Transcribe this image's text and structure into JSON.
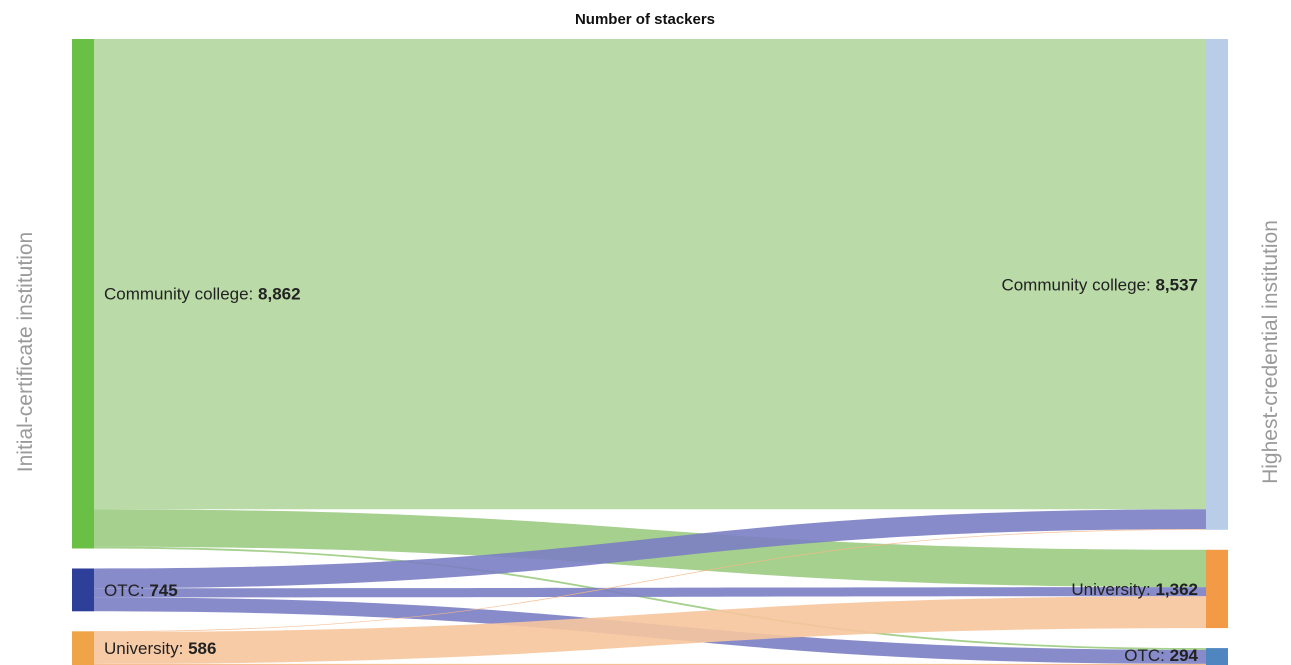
{
  "chart_data": {
    "type": "sankey",
    "title": "Number of stackers",
    "left_axis_label": "Initial-certificate institution",
    "right_axis_label": "Highest-credential institution",
    "source_nodes": [
      {
        "id": "cc",
        "name": "Community college",
        "value_label": "8,862",
        "value": 8862,
        "color": "#6abf45"
      },
      {
        "id": "otc",
        "name": "OTC",
        "value_label": "745",
        "value": 745,
        "color": "#2e3f99"
      },
      {
        "id": "univ",
        "name": "University",
        "value_label": "586",
        "value": 586,
        "color": "#f0a448"
      }
    ],
    "target_nodes": [
      {
        "id": "cc",
        "name": "Community college",
        "value_label": "8,537",
        "value": 8537,
        "color": "#b9cde9"
      },
      {
        "id": "univ",
        "name": "University",
        "value_label": "1,362",
        "value": 1362,
        "color": "#f29a45"
      },
      {
        "id": "otc",
        "name": "OTC",
        "value_label": "294",
        "value": 294,
        "color": "#4f86c0"
      }
    ],
    "links": [
      {
        "source": "cc",
        "target": "cc",
        "value": 8180,
        "color": "#b3d79f"
      },
      {
        "source": "cc",
        "target": "univ",
        "value": 650,
        "color": "#9ccb82"
      },
      {
        "source": "cc",
        "target": "otc",
        "value": 32,
        "color": "#9ccb82"
      },
      {
        "source": "otc",
        "target": "cc",
        "value": 345,
        "color": "#7b7ec3"
      },
      {
        "source": "otc",
        "target": "univ",
        "value": 158,
        "color": "#7b7ec3"
      },
      {
        "source": "otc",
        "target": "otc",
        "value": 242,
        "color": "#7b7ec3"
      },
      {
        "source": "univ",
        "target": "cc",
        "value": 12,
        "color": "#f5b98a"
      },
      {
        "source": "univ",
        "target": "univ",
        "value": 554,
        "color": "#f7c59d"
      },
      {
        "source": "univ",
        "target": "otc",
        "value": 20,
        "color": "#f5b98a"
      }
    ]
  }
}
